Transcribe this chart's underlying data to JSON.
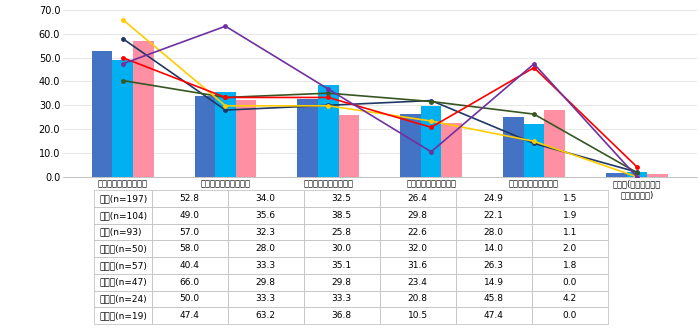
{
  "categories": [
    "捨てる時にラベルをは\nがす手間がないから",
    "リサイクルに貢献でき\nそうだから",
    "中味の残量がわかりや\nすいから",
    "見た目がおしゃれな感\nじがするから",
    "ラベルのプラスチック\nごみが減るから",
    "その他(具体的に入力\nしてください)"
  ],
  "bar_labels": [
    "全体(n=197)",
    "男性(n=104)",
    "女性(n=93)"
  ],
  "bar_colors": [
    "#4472C4",
    "#00B0F0",
    "#FF8FA3"
  ],
  "bar_values": [
    [
      52.8,
      34.0,
      32.5,
      26.4,
      24.9,
      1.5
    ],
    [
      49.0,
      35.6,
      38.5,
      29.8,
      22.1,
      1.9
    ],
    [
      57.0,
      32.3,
      25.8,
      22.6,
      28.0,
      1.1
    ]
  ],
  "line_labels": [
    "２０代(n=50)",
    "３０代(n=57)",
    "４０代(n=47)",
    "５０代(n=24)",
    "６０代(n=19)"
  ],
  "line_colors": [
    "#1F3864",
    "#375623",
    "#FFCC00",
    "#FF0000",
    "#7030A0"
  ],
  "line_values": [
    [
      58.0,
      28.0,
      30.0,
      32.0,
      14.0,
      2.0
    ],
    [
      40.4,
      33.3,
      35.1,
      31.6,
      26.3,
      1.8
    ],
    [
      66.0,
      29.8,
      29.8,
      23.4,
      14.9,
      0.0
    ],
    [
      50.0,
      33.3,
      33.3,
      20.8,
      45.8,
      4.2
    ],
    [
      47.4,
      63.2,
      36.8,
      10.5,
      47.4,
      0.0
    ]
  ],
  "table_data": [
    [
      "全体(n=197)",
      "52.8",
      "34.0",
      "32.5",
      "26.4",
      "24.9",
      "1.5"
    ],
    [
      "男性(n=104)",
      "49.0",
      "35.6",
      "38.5",
      "29.8",
      "22.1",
      "1.9"
    ],
    [
      "女性(n=93)",
      "57.0",
      "32.3",
      "25.8",
      "22.6",
      "28.0",
      "1.1"
    ],
    [
      "２０代(n=50)",
      "58.0",
      "28.0",
      "30.0",
      "32.0",
      "14.0",
      "2.0"
    ],
    [
      "３０代(n=57)",
      "40.4",
      "33.3",
      "35.1",
      "31.6",
      "26.3",
      "1.8"
    ],
    [
      "４０代(n=47)",
      "66.0",
      "29.8",
      "29.8",
      "23.4",
      "14.9",
      "0.0"
    ],
    [
      "５０代(n=24)",
      "50.0",
      "33.3",
      "33.3",
      "20.8",
      "45.8",
      "4.2"
    ],
    [
      "６０代(n=19)",
      "47.4",
      "63.2",
      "36.8",
      "10.5",
      "47.4",
      "0.0"
    ]
  ],
  "ylim": [
    0,
    70.0
  ],
  "yticks": [
    0.0,
    10.0,
    20.0,
    30.0,
    40.0,
    50.0,
    60.0,
    70.0
  ],
  "bar_width": 0.2,
  "figsize": [
    7.0,
    3.33
  ],
  "dpi": 100
}
